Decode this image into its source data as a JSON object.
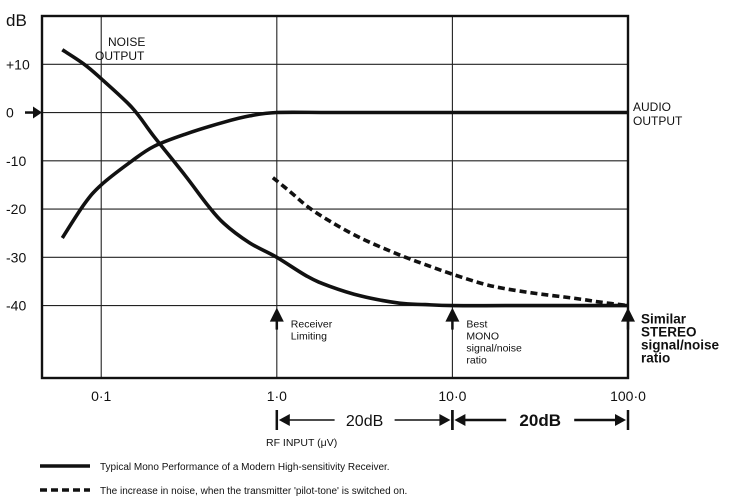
{
  "chart_data": {
    "type": "line",
    "xscale": "log",
    "xlim": [
      0.046,
      100
    ],
    "ylim": [
      -55,
      20
    ],
    "y_unit": "dB",
    "xlabel": "RF INPUT (μV)",
    "yticks": [
      {
        "value": 10,
        "label": "+10"
      },
      {
        "value": 0,
        "label": "0"
      },
      {
        "value": -10,
        "label": "-10"
      },
      {
        "value": -20,
        "label": "-20"
      },
      {
        "value": -30,
        "label": "-30"
      },
      {
        "value": -40,
        "label": "-40"
      }
    ],
    "xticks": [
      {
        "value": 0.1,
        "label": "0·1"
      },
      {
        "value": 1,
        "label": "1·0"
      },
      {
        "value": 10,
        "label": "10·0"
      },
      {
        "value": 100,
        "label": "100·0"
      }
    ],
    "grid": true,
    "series": [
      {
        "label": "NOISE OUTPUT",
        "style": "solid",
        "x": [
          0.06,
          0.08,
          0.1,
          0.15,
          0.2,
          0.3,
          0.4,
          0.5,
          0.7,
          1.0,
          1.5,
          2,
          3,
          5,
          7,
          10,
          20,
          50,
          100
        ],
        "y": [
          13,
          10,
          7,
          1,
          -5,
          -13,
          -19,
          -23,
          -27,
          -30,
          -34,
          -36,
          -38,
          -39.5,
          -39.8,
          -40,
          -40,
          -40,
          -40
        ]
      },
      {
        "label": "AUDIO OUTPUT",
        "style": "solid",
        "x": [
          0.06,
          0.08,
          0.1,
          0.15,
          0.2,
          0.3,
          0.5,
          0.7,
          1.0,
          2,
          5,
          10,
          50,
          100
        ],
        "y": [
          -26,
          -19,
          -15,
          -10,
          -7,
          -4.5,
          -2,
          -0.7,
          0,
          0,
          0,
          0,
          0,
          0
        ]
      },
      {
        "label": "The increase in noise, when the transmitter 'pilot-tone' is switched on.",
        "style": "dashed",
        "x": [
          0.95,
          1.2,
          1.5,
          2,
          3,
          5,
          7,
          10,
          15,
          20,
          30,
          50,
          70,
          100
        ],
        "y": [
          -13.5,
          -16.5,
          -19.5,
          -22.5,
          -26,
          -29.5,
          -31.5,
          -33.5,
          -35.5,
          -36.5,
          -37.5,
          -38.5,
          -39.3,
          -40
        ]
      }
    ],
    "arrow_markers": [
      {
        "x": 1,
        "text": [
          "Receiver",
          "Limiting"
        ],
        "bold": false
      },
      {
        "x": 10,
        "text": [
          "Best",
          "MONO",
          "signal/noise",
          "ratio"
        ],
        "bold": false
      },
      {
        "x": 100,
        "text": [
          "Similar",
          "STEREO",
          "signal/noise",
          "ratio"
        ],
        "bold": true
      }
    ],
    "intervals": [
      {
        "from": 1,
        "to": 10,
        "label": "20dB",
        "bold": false
      },
      {
        "from": 10,
        "to": 100,
        "label": "20dB",
        "bold": true
      }
    ],
    "curve_labels": {
      "noise": [
        "NOISE",
        "OUTPUT"
      ],
      "audio": [
        "AUDIO",
        "OUTPUT"
      ]
    },
    "legend": [
      {
        "style": "solid",
        "text": "Typical Mono Performance of a Modern High-sensitivity Receiver."
      },
      {
        "style": "dashed",
        "text": "The increase in noise, when the transmitter 'pilot-tone' is switched on."
      }
    ]
  }
}
